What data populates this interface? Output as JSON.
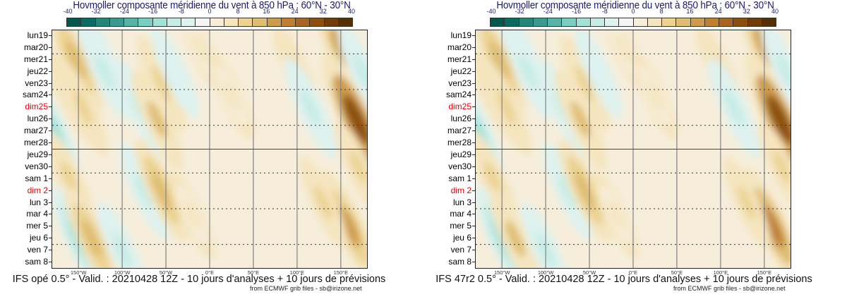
{
  "chart_data": [
    {
      "type": "heatmap",
      "title": "Hovmoller composante méridienne du vent à 850 hPa : 60°N - 30°N",
      "caption": "IFS opé 0.5° - Valid. : 20210428 12Z - 10 jours d'analyses + 10 jours de prévisions",
      "credit": "from ECMWF grib files - sb@irizone.net",
      "colorbar": {
        "ticks": [
          "-40",
          "-32",
          "-24",
          "-16",
          "-8",
          "0",
          "8",
          "16",
          "24",
          "32",
          "40"
        ],
        "range": [
          -40,
          40
        ],
        "step": 4,
        "colors": [
          "#03574c",
          "#0b6b62",
          "#238677",
          "#3a9a8e",
          "#58b3a7",
          "#7ccdc1",
          "#a3e0d6",
          "#c6ece5",
          "#def2ef",
          "#f4f4f4",
          "#f6eedb",
          "#f5e5bf",
          "#ecd393",
          "#dfbd72",
          "#cd9c4a",
          "#bf8030",
          "#a86420",
          "#8c4f10",
          "#6f3c09",
          "#533006"
        ]
      },
      "y_labels": [
        {
          "text": "lun19",
          "weekend": false
        },
        {
          "text": "mar20",
          "weekend": false
        },
        {
          "text": "mer21",
          "weekend": false
        },
        {
          "text": "jeu22",
          "weekend": false
        },
        {
          "text": "ven23",
          "weekend": false
        },
        {
          "text": "sam24",
          "weekend": false
        },
        {
          "text": "dim25",
          "weekend": true
        },
        {
          "text": "lun26",
          "weekend": false
        },
        {
          "text": "mar27",
          "weekend": false
        },
        {
          "text": "mer28",
          "weekend": false
        },
        {
          "text": "jeu29",
          "weekend": false
        },
        {
          "text": "ven30",
          "weekend": false
        },
        {
          "text": "sam 1",
          "weekend": false
        },
        {
          "text": "dim 2",
          "weekend": true
        },
        {
          "text": "lun 3",
          "weekend": false
        },
        {
          "text": "mar 4",
          "weekend": false
        },
        {
          "text": "mer 5",
          "weekend": false
        },
        {
          "text": "jeu 6",
          "weekend": false
        },
        {
          "text": "ven 7",
          "weekend": false
        },
        {
          "text": "sam 8",
          "weekend": false
        }
      ],
      "x_labels": [
        "150°W",
        "100°W",
        "50°W",
        "0°E",
        "50°E",
        "100°E",
        "150°E"
      ],
      "x_values": [
        -150,
        -100,
        -50,
        0,
        50,
        100,
        150
      ],
      "xlim": [
        -180,
        180
      ],
      "analysis_forecast_split": "jeu29",
      "features": [
        {
          "lon": -153,
          "day": 2,
          "v": 14
        },
        {
          "lon": -160,
          "day": 5,
          "v": 8
        },
        {
          "lon": -178,
          "day": 8,
          "v": -14
        },
        {
          "lon": -145,
          "day": 6,
          "v": 10
        },
        {
          "lon": -130,
          "day": 1,
          "v": -12
        },
        {
          "lon": -120,
          "day": 3,
          "v": -10
        },
        {
          "lon": -80,
          "day": 6,
          "v": -10
        },
        {
          "lon": -60,
          "day": 7,
          "v": 12
        },
        {
          "lon": -55,
          "day": 4,
          "v": 10
        },
        {
          "lon": -40,
          "day": 3,
          "v": -8
        },
        {
          "lon": -10,
          "day": 1,
          "v": 6
        },
        {
          "lon": 25,
          "day": 5,
          "v": 6
        },
        {
          "lon": 100,
          "day": 3,
          "v": 10
        },
        {
          "lon": 115,
          "day": 6,
          "v": -12
        },
        {
          "lon": 150,
          "day": 1,
          "v": 16
        },
        {
          "lon": 168,
          "day": 7,
          "v": 30
        },
        {
          "lon": 175,
          "day": 3,
          "v": -10
        },
        {
          "lon": -75,
          "day": 13,
          "v": -10
        },
        {
          "lon": -55,
          "day": 13,
          "v": 14
        },
        {
          "lon": -160,
          "day": 12,
          "v": 10
        },
        {
          "lon": -150,
          "day": 17,
          "v": -14
        },
        {
          "lon": -135,
          "day": 17,
          "v": 14
        },
        {
          "lon": -100,
          "day": 18,
          "v": -10
        },
        {
          "lon": -20,
          "day": 15,
          "v": 6
        },
        {
          "lon": 160,
          "day": 16,
          "v": 18
        },
        {
          "lon": 170,
          "day": 11,
          "v": 8
        },
        {
          "lon": 130,
          "day": 14,
          "v": 8
        }
      ]
    },
    {
      "type": "heatmap",
      "title": "Hovmoller composante méridienne du vent à 850 hPa : 60°N - 30°N",
      "caption": "IFS 47r2 0.5° - Valid. : 20210428 12Z - 10 jours d'analyses + 10 jours de prévisions",
      "credit": "from ECMWF grib files - sb@irizone.net",
      "colorbar": {
        "ticks": [
          "-40",
          "-32",
          "-24",
          "-16",
          "-8",
          "0",
          "8",
          "16",
          "24",
          "32",
          "40"
        ],
        "range": [
          -40,
          40
        ],
        "step": 4,
        "colors": [
          "#03574c",
          "#0b6b62",
          "#238677",
          "#3a9a8e",
          "#58b3a7",
          "#7ccdc1",
          "#a3e0d6",
          "#c6ece5",
          "#def2ef",
          "#f4f4f4",
          "#f6eedb",
          "#f5e5bf",
          "#ecd393",
          "#dfbd72",
          "#cd9c4a",
          "#bf8030",
          "#a86420",
          "#8c4f10",
          "#6f3c09",
          "#533006"
        ]
      },
      "y_labels": [
        {
          "text": "lun19",
          "weekend": false
        },
        {
          "text": "mar20",
          "weekend": false
        },
        {
          "text": "mer21",
          "weekend": false
        },
        {
          "text": "jeu22",
          "weekend": false
        },
        {
          "text": "ven23",
          "weekend": false
        },
        {
          "text": "sam24",
          "weekend": false
        },
        {
          "text": "dim25",
          "weekend": true
        },
        {
          "text": "lun26",
          "weekend": false
        },
        {
          "text": "mar27",
          "weekend": false
        },
        {
          "text": "mer28",
          "weekend": false
        },
        {
          "text": "jeu29",
          "weekend": false
        },
        {
          "text": "ven30",
          "weekend": false
        },
        {
          "text": "sam 1",
          "weekend": false
        },
        {
          "text": "dim 2",
          "weekend": true
        },
        {
          "text": "lun 3",
          "weekend": false
        },
        {
          "text": "mar 4",
          "weekend": false
        },
        {
          "text": "mer 5",
          "weekend": false
        },
        {
          "text": "jeu 6",
          "weekend": false
        },
        {
          "text": "ven 7",
          "weekend": false
        },
        {
          "text": "sam 8",
          "weekend": false
        }
      ],
      "x_labels": [
        "150°W",
        "100°W",
        "50°W",
        "0°E",
        "50°E",
        "100°E",
        "150°E"
      ],
      "x_values": [
        -150,
        -100,
        -50,
        0,
        50,
        100,
        150
      ],
      "xlim": [
        -180,
        180
      ],
      "analysis_forecast_split": "jeu29",
      "features": [
        {
          "lon": -153,
          "day": 2,
          "v": 14
        },
        {
          "lon": -160,
          "day": 5,
          "v": 8
        },
        {
          "lon": -178,
          "day": 8,
          "v": -14
        },
        {
          "lon": -145,
          "day": 6,
          "v": 10
        },
        {
          "lon": -130,
          "day": 1,
          "v": -12
        },
        {
          "lon": -120,
          "day": 3,
          "v": -10
        },
        {
          "lon": -80,
          "day": 6,
          "v": -10
        },
        {
          "lon": -60,
          "day": 7,
          "v": 12
        },
        {
          "lon": -55,
          "day": 4,
          "v": 10
        },
        {
          "lon": -40,
          "day": 3,
          "v": -8
        },
        {
          "lon": -10,
          "day": 1,
          "v": 6
        },
        {
          "lon": 25,
          "day": 5,
          "v": 6
        },
        {
          "lon": 100,
          "day": 3,
          "v": 10
        },
        {
          "lon": 115,
          "day": 6,
          "v": -12
        },
        {
          "lon": 150,
          "day": 1,
          "v": 16
        },
        {
          "lon": 168,
          "day": 7,
          "v": 30
        },
        {
          "lon": 175,
          "day": 3,
          "v": -10
        },
        {
          "lon": -75,
          "day": 13,
          "v": -10
        },
        {
          "lon": -55,
          "day": 13,
          "v": 14
        },
        {
          "lon": -160,
          "day": 12,
          "v": 10
        },
        {
          "lon": -150,
          "day": 17,
          "v": -14
        },
        {
          "lon": -135,
          "day": 17,
          "v": 12
        },
        {
          "lon": -100,
          "day": 18,
          "v": -10
        },
        {
          "lon": -20,
          "day": 15,
          "v": 6
        },
        {
          "lon": 160,
          "day": 16,
          "v": 20
        },
        {
          "lon": 170,
          "day": 11,
          "v": 8
        },
        {
          "lon": 130,
          "day": 14,
          "v": 8
        }
      ]
    }
  ]
}
